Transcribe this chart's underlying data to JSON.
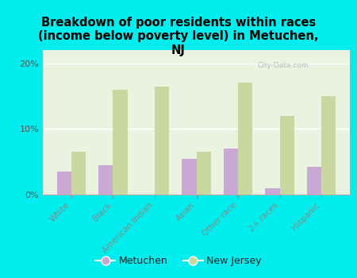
{
  "categories": [
    "White",
    "Black",
    "American Indian",
    "Asian",
    "Other race",
    "2+ races",
    "Hispanic"
  ],
  "metuchen": [
    3.5,
    4.5,
    0,
    5.5,
    7.0,
    1.0,
    4.2
  ],
  "new_jersey": [
    6.5,
    16.0,
    16.5,
    6.5,
    17.0,
    12.0,
    15.0
  ],
  "metuchen_color": "#c9a8d4",
  "nj_color": "#c8d8a0",
  "title": "Breakdown of poor residents within races\n(income below poverty level) in Metuchen,\nNJ",
  "title_fontsize": 10.5,
  "ylim": [
    0,
    22
  ],
  "yticks": [
    0,
    10,
    20
  ],
  "ytick_labels": [
    "0%",
    "10%",
    "20%"
  ],
  "background_color": "#00eeee",
  "plot_bg_color": "#eaf2e0",
  "bar_width": 0.35,
  "legend_metuchen": "Metuchen",
  "legend_nj": "New Jersey",
  "watermark": "City-Data.com"
}
